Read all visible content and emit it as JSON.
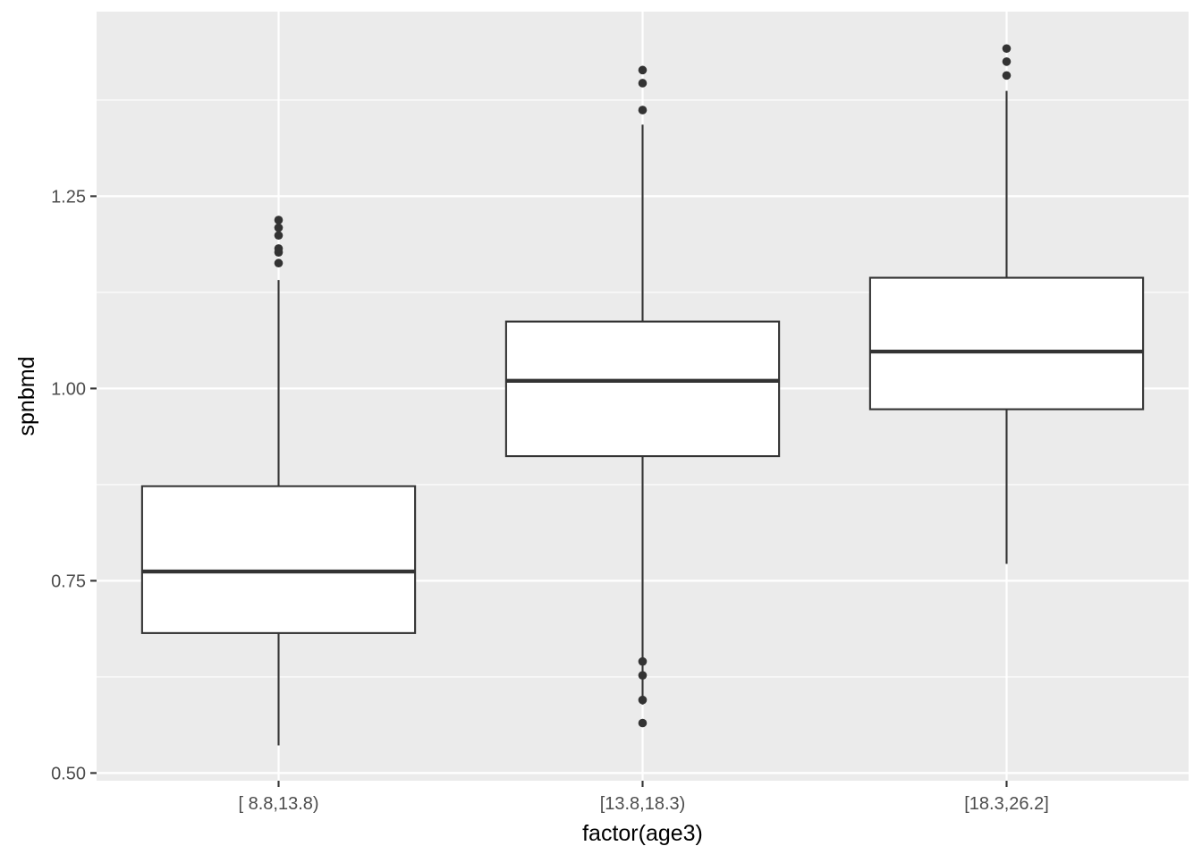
{
  "chart_data": {
    "type": "boxplot",
    "xlabel": "factor(age3)",
    "ylabel": "spnbmd",
    "ylim": [
      0.49,
      1.49
    ],
    "y_ticks": [
      0.5,
      0.75,
      1.0,
      1.25
    ],
    "y_tick_labels": [
      "0.50",
      "0.75",
      "1.00",
      "1.25"
    ],
    "y_minor_ticks": [
      0.625,
      0.875,
      1.125,
      1.375
    ],
    "categories": [
      "[ 8.8,13.8)",
      "[13.8,18.3)",
      "[18.3,26.2]"
    ],
    "boxes": [
      {
        "category": "[ 8.8,13.8)",
        "lower_whisker": 0.536,
        "q1": 0.682,
        "median": 0.762,
        "q3": 0.873,
        "upper_whisker": 1.141,
        "outliers": [
          1.163,
          1.177,
          1.182,
          1.199,
          1.209,
          1.219
        ]
      },
      {
        "category": "[13.8,18.3)",
        "lower_whisker": 0.589,
        "q1": 0.912,
        "median": 1.01,
        "q3": 1.087,
        "upper_whisker": 1.343,
        "outliers": [
          0.565,
          0.595,
          0.627,
          0.645,
          1.362,
          1.397,
          1.414
        ]
      },
      {
        "category": "[18.3,26.2]",
        "lower_whisker": 0.772,
        "q1": 0.973,
        "median": 1.048,
        "q3": 1.144,
        "upper_whisker": 1.387,
        "outliers": [
          1.407,
          1.425,
          1.442
        ]
      }
    ],
    "colors": {
      "panel_background": "#ebebeb",
      "grid": "#ffffff",
      "box_fill": "#ffffff",
      "box_line": "#333333",
      "outlier": "#333333",
      "tick_text": "#4d4d4d",
      "title_text": "#000000"
    },
    "grid": true,
    "legend": "none"
  }
}
